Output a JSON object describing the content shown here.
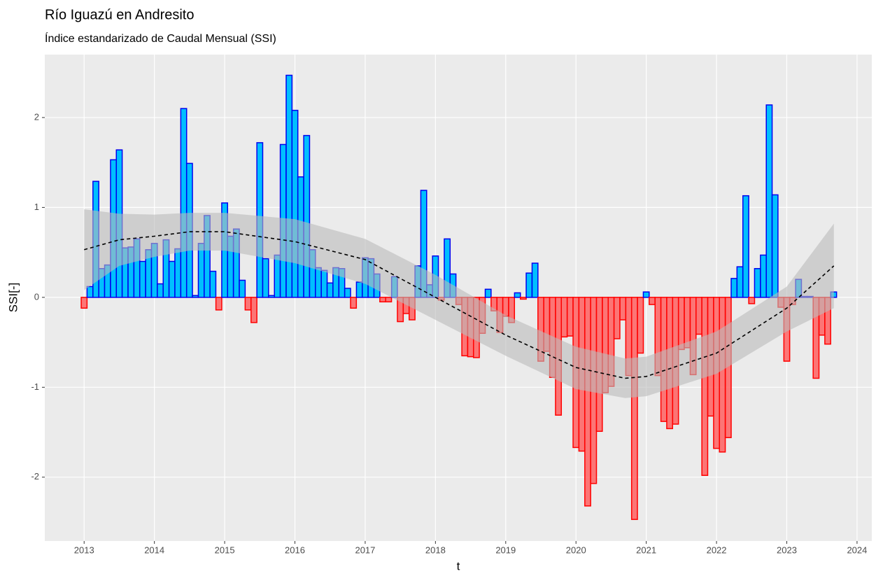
{
  "chart_data": {
    "type": "bar",
    "title": "Río Iguazú en Andresito",
    "subtitle": "Índice estandarizado de Caudal Mensual (SSI)",
    "x_label": "t",
    "y_label": "SSI[-]",
    "x": [
      2013,
      2013.083,
      2013.167,
      2013.25,
      2013.333,
      2013.417,
      2013.5,
      2013.583,
      2013.667,
      2013.75,
      2013.833,
      2013.917,
      2014,
      2014.083,
      2014.167,
      2014.25,
      2014.333,
      2014.417,
      2014.5,
      2014.583,
      2014.667,
      2014.75,
      2014.833,
      2014.917,
      2015,
      2015.083,
      2015.167,
      2015.25,
      2015.333,
      2015.417,
      2015.5,
      2015.583,
      2015.667,
      2015.75,
      2015.833,
      2015.917,
      2016,
      2016.083,
      2016.167,
      2016.25,
      2016.333,
      2016.417,
      2016.5,
      2016.583,
      2016.667,
      2016.75,
      2016.833,
      2016.917,
      2017,
      2017.083,
      2017.167,
      2017.25,
      2017.333,
      2017.417,
      2017.5,
      2017.583,
      2017.667,
      2017.75,
      2017.833,
      2017.917,
      2018,
      2018.083,
      2018.167,
      2018.25,
      2018.333,
      2018.417,
      2018.5,
      2018.583,
      2018.667,
      2018.75,
      2018.833,
      2018.917,
      2019,
      2019.083,
      2019.167,
      2019.25,
      2019.333,
      2019.417,
      2019.5,
      2019.583,
      2019.667,
      2019.75,
      2019.833,
      2019.917,
      2020,
      2020.083,
      2020.167,
      2020.25,
      2020.333,
      2020.417,
      2020.5,
      2020.583,
      2020.667,
      2020.75,
      2020.833,
      2020.917,
      2021,
      2021.083,
      2021.167,
      2021.25,
      2021.333,
      2021.417,
      2021.5,
      2021.583,
      2021.667,
      2021.75,
      2021.833,
      2021.917,
      2022,
      2022.083,
      2022.167,
      2022.25,
      2022.333,
      2022.417,
      2022.5,
      2022.583,
      2022.667,
      2022.75,
      2022.833,
      2022.917,
      2023,
      2023.083,
      2023.167,
      2023.25,
      2023.333,
      2023.417,
      2023.5,
      2023.583,
      2023.667
    ],
    "values": [
      -0.12,
      0.12,
      1.29,
      0.32,
      0.36,
      1.53,
      1.64,
      0.55,
      0.56,
      0.65,
      0.4,
      0.53,
      0.6,
      0.15,
      0.64,
      0.4,
      0.54,
      2.1,
      1.49,
      0.02,
      0.6,
      0.91,
      0.29,
      -0.14,
      1.05,
      0.68,
      0.76,
      0.19,
      -0.14,
      -0.28,
      1.72,
      0.43,
      0.02,
      0.47,
      1.7,
      2.47,
      2.08,
      1.34,
      1.8,
      0.53,
      0.33,
      0.3,
      0.16,
      0.33,
      0.32,
      0.1,
      -0.12,
      0.17,
      0.44,
      0.43,
      0.26,
      -0.05,
      -0.05,
      0.23,
      -0.27,
      -0.18,
      -0.25,
      0.35,
      1.19,
      0.14,
      0.46,
      -0.03,
      0.65,
      0.26,
      -0.08,
      -0.65,
      -0.66,
      -0.67,
      -0.4,
      0.09,
      -0.15,
      -0.39,
      -0.21,
      -0.28,
      0.05,
      -0.02,
      0.27,
      0.38,
      -0.71,
      -0.6,
      -0.89,
      -1.31,
      -0.44,
      -0.43,
      -1.67,
      -1.71,
      -2.32,
      -2.07,
      -1.49,
      -1.06,
      -0.99,
      -0.46,
      -0.25,
      -0.87,
      -2.47,
      -0.62,
      0.06,
      -0.08,
      -0.87,
      -1.38,
      -1.46,
      -1.41,
      -0.58,
      -0.56,
      -0.86,
      -0.41,
      -1.98,
      -1.32,
      -1.68,
      -1.72,
      -1.56,
      0.21,
      0.34,
      1.13,
      -0.07,
      0.32,
      0.47,
      2.14,
      1.14,
      -0.11,
      -0.71,
      -0.08,
      0.2,
      0.01,
      0.01,
      -0.9,
      -0.42,
      -0.52,
      0.06
    ],
    "colors": {
      "positive_fill": "#00bfff",
      "positive_edge": "#0000ee",
      "negative_fill": "#ff6060",
      "negative_edge": "#ff0000",
      "smooth": "#000000",
      "ribbon": "#bbbbbb"
    },
    "smooth": {
      "x": [
        2013,
        2013.5,
        2014,
        2014.5,
        2015,
        2016,
        2017,
        2018,
        2019,
        2020,
        2020.7,
        2021,
        2022,
        2023,
        2023.67
      ],
      "values": [
        0.53,
        0.64,
        0.68,
        0.73,
        0.73,
        0.62,
        0.42,
        0.0,
        -0.42,
        -0.78,
        -0.9,
        -0.88,
        -0.62,
        -0.12,
        0.35
      ],
      "lower": [
        0.08,
        0.35,
        0.45,
        0.52,
        0.52,
        0.38,
        0.15,
        -0.25,
        -0.65,
        -1.02,
        -1.12,
        -1.1,
        -0.85,
        -0.38,
        -0.12
      ],
      "upper": [
        0.98,
        0.93,
        0.92,
        0.94,
        0.94,
        0.87,
        0.65,
        0.25,
        -0.2,
        -0.55,
        -0.68,
        -0.66,
        -0.38,
        0.12,
        0.82
      ]
    },
    "xlim": [
      2012.44,
      2024.21
    ],
    "xticks": [
      2013,
      2014,
      2015,
      2016,
      2017,
      2018,
      2019,
      2020,
      2021,
      2022,
      2023,
      2024
    ],
    "ylim": [
      -2.71,
      2.7
    ],
    "yticks": [
      -2,
      -1,
      0,
      1,
      2
    ],
    "grid": true
  }
}
